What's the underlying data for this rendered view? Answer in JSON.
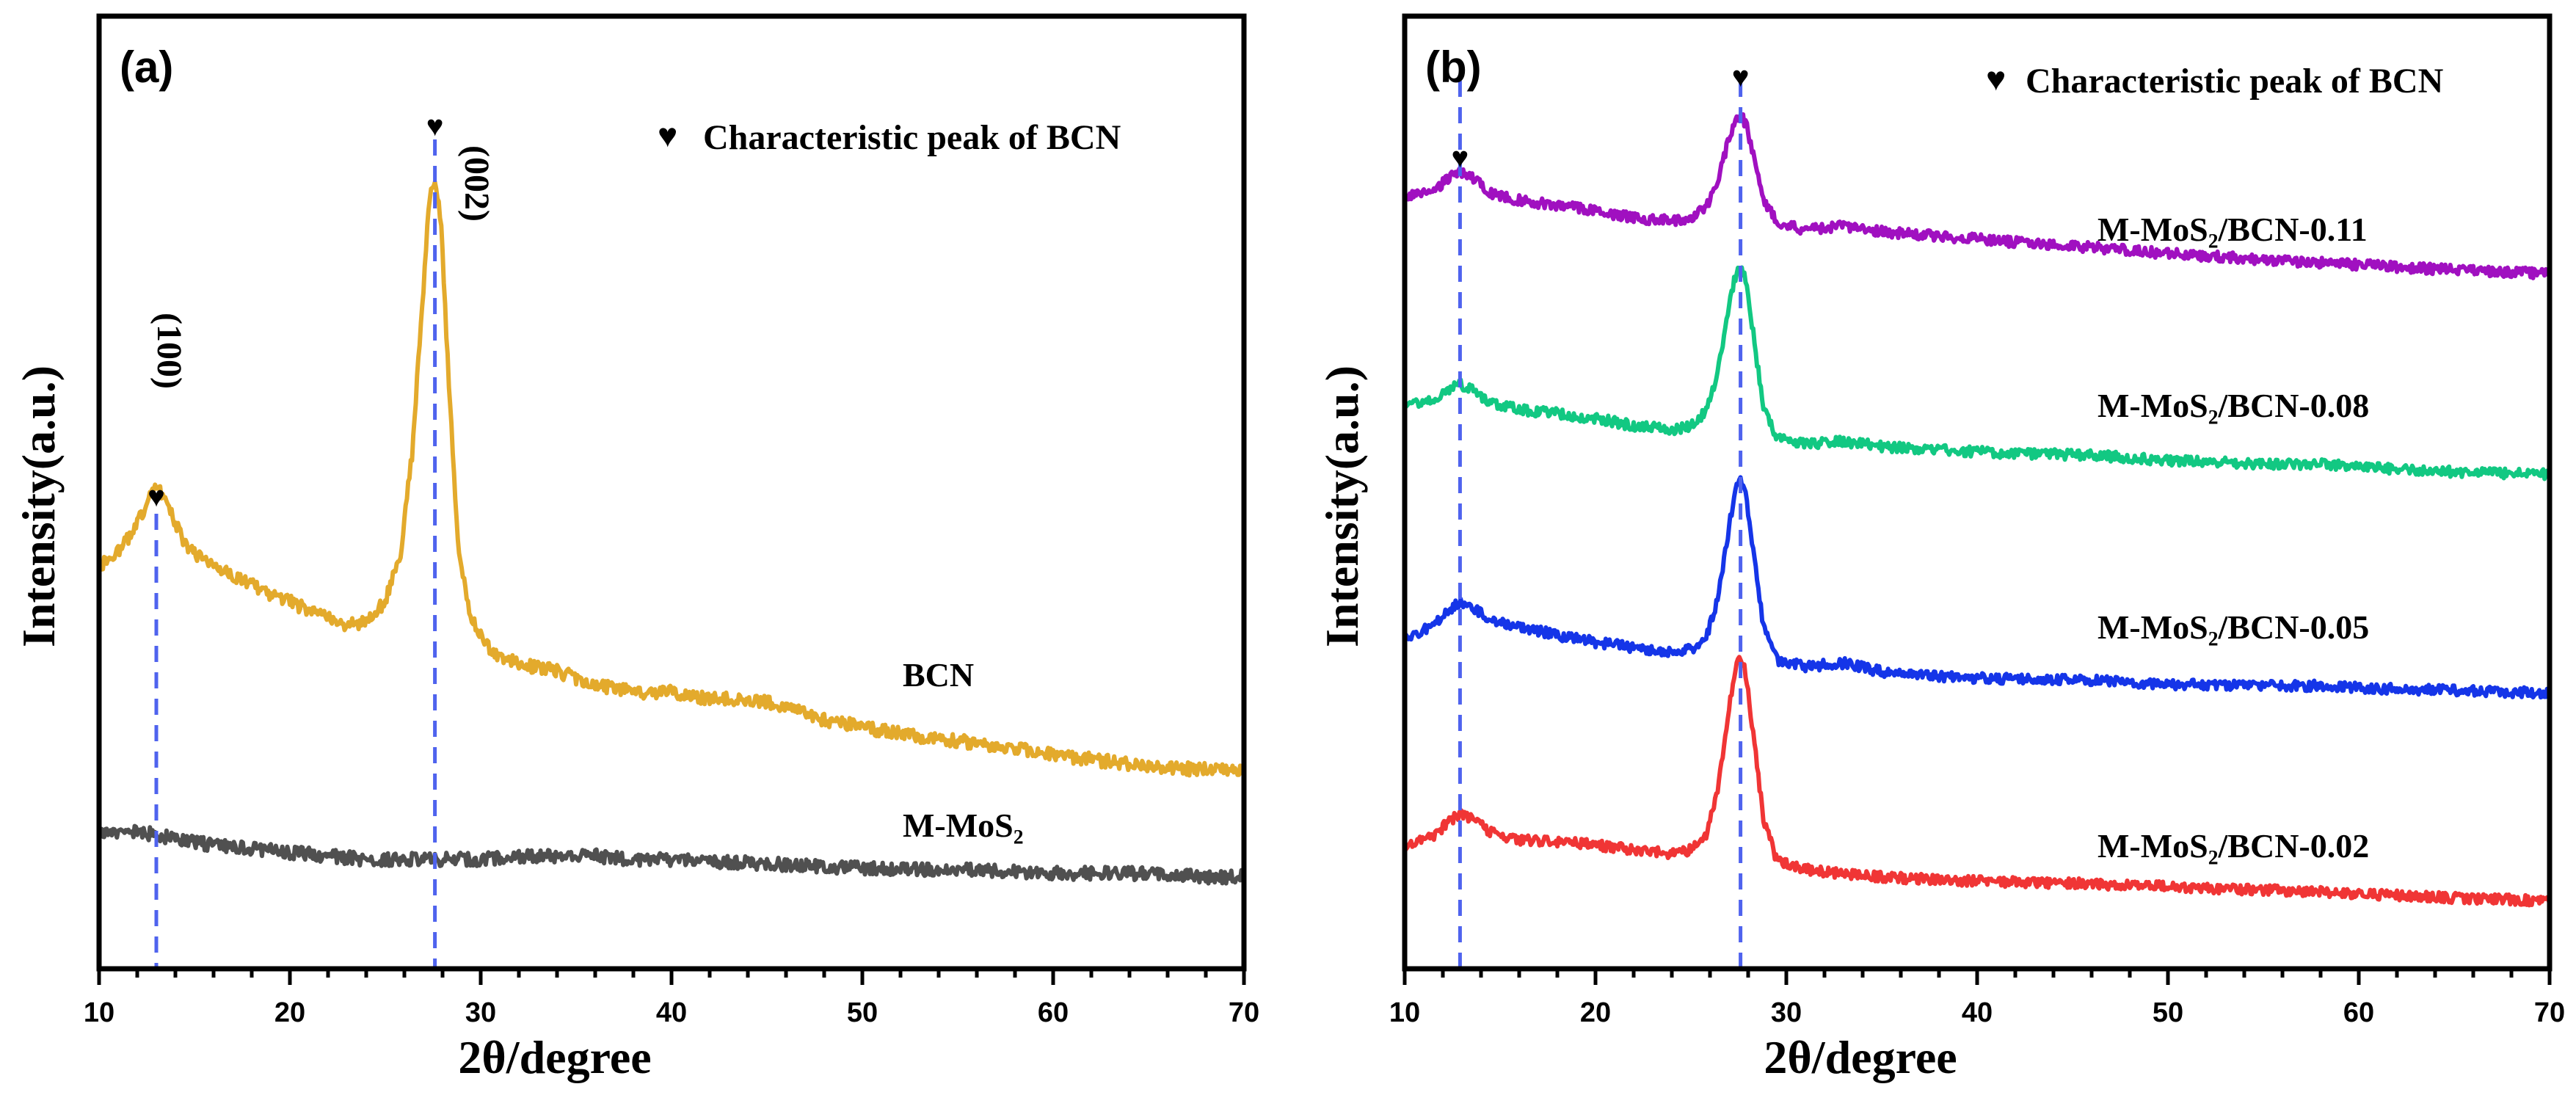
{
  "colors": {
    "marker": "#4f63ee",
    "bcn": "#e3aa2c",
    "mmos2": "#505050",
    "p011": "#a010c0",
    "p008": "#12c882",
    "p005": "#1535e8",
    "p002": "#f03535"
  },
  "chart_data": [
    {
      "type": "line",
      "panel": "(a)",
      "xlabel": "2θ/degree",
      "ylabel": "Intensity(a.u.)",
      "xlim": [
        10,
        70
      ],
      "x_ticks": [
        "10",
        "20",
        "30",
        "40",
        "50",
        "60",
        "70"
      ],
      "y_ticks_labeled": false,
      "grid": false,
      "legend": {
        "symbol": "♥",
        "text": "Characteristic peak of BCN",
        "position": "top-right"
      },
      "annotations": [
        {
          "text": "(100)",
          "x": 13.0
        },
        {
          "text": "(002)",
          "x": 27.6
        }
      ],
      "marker_lines_x": [
        13.0,
        27.6
      ],
      "series": [
        {
          "name": "BCN",
          "color": "#e3aa2c",
          "points": [
            [
              10,
              0.44
            ],
            [
              11,
              0.46
            ],
            [
              12,
              0.5
            ],
            [
              12.6,
              0.54
            ],
            [
              13,
              0.56
            ],
            [
              13.6,
              0.53
            ],
            [
              14.5,
              0.47
            ],
            [
              16,
              0.44
            ],
            [
              17.5,
              0.42
            ],
            [
              19,
              0.4
            ],
            [
              20,
              0.39
            ],
            [
              21.5,
              0.37
            ],
            [
              23,
              0.355
            ],
            [
              24,
              0.36
            ],
            [
              25,
              0.39
            ],
            [
              25.8,
              0.46
            ],
            [
              26.4,
              0.6
            ],
            [
              26.9,
              0.8
            ],
            [
              27.3,
              0.96
            ],
            [
              27.6,
              1.0
            ],
            [
              27.9,
              0.94
            ],
            [
              28.3,
              0.72
            ],
            [
              28.8,
              0.48
            ],
            [
              29.4,
              0.37
            ],
            [
              30.5,
              0.32
            ],
            [
              32,
              0.3
            ],
            [
              34,
              0.29
            ],
            [
              36,
              0.27
            ],
            [
              38,
              0.26
            ],
            [
              40,
              0.26
            ],
            [
              42,
              0.25
            ],
            [
              44,
              0.25
            ],
            [
              46,
              0.24
            ],
            [
              48,
              0.22
            ],
            [
              50,
              0.21
            ],
            [
              52,
              0.2
            ],
            [
              55,
              0.19
            ],
            [
              58,
              0.18
            ],
            [
              60,
              0.17
            ],
            [
              63,
              0.16
            ],
            [
              66,
              0.15
            ],
            [
              70,
              0.15
            ]
          ]
        },
        {
          "name": "M-MoS₂",
          "color": "#505050",
          "points": [
            [
              10,
              0.06
            ],
            [
              12,
              0.06
            ],
            [
              14,
              0.05
            ],
            [
              16,
              0.04
            ],
            [
              18,
              0.035
            ],
            [
              20,
              0.03
            ],
            [
              22,
              0.025
            ],
            [
              24,
              0.02
            ],
            [
              26,
              0.02
            ],
            [
              28,
              0.02
            ],
            [
              30,
              0.02
            ],
            [
              32,
              0.025
            ],
            [
              34,
              0.025
            ],
            [
              36,
              0.025
            ],
            [
              38,
              0.02
            ],
            [
              40,
              0.02
            ],
            [
              44,
              0.015
            ],
            [
              48,
              0.01
            ],
            [
              52,
              0.005
            ],
            [
              56,
              0.005
            ],
            [
              60,
              0.0
            ],
            [
              64,
              0.0
            ],
            [
              68,
              -0.005
            ],
            [
              70,
              -0.005
            ]
          ]
        }
      ]
    },
    {
      "type": "line",
      "panel": "(b)",
      "xlabel": "2θ/degree",
      "ylabel": "Intensity(a.u.)",
      "xlim": [
        10,
        70
      ],
      "x_ticks": [
        "10",
        "20",
        "30",
        "40",
        "50",
        "60",
        "70"
      ],
      "y_ticks_labeled": false,
      "grid": false,
      "legend": {
        "symbol": "♥",
        "text": "Characteristic peak of BCN",
        "position": "top-right"
      },
      "marker_lines_x": [
        12.9,
        27.6
      ],
      "series": [
        {
          "name": "M-MoS₂/BCN-0.11",
          "color": "#a010c0",
          "points": [
            [
              10,
              0.842
            ],
            [
              11.5,
              0.85
            ],
            [
              12.3,
              0.862
            ],
            [
              12.9,
              0.872
            ],
            [
              13.6,
              0.862
            ],
            [
              14.5,
              0.846
            ],
            [
              16,
              0.838
            ],
            [
              18,
              0.832
            ],
            [
              20,
              0.826
            ],
            [
              22,
              0.818
            ],
            [
              24,
              0.814
            ],
            [
              25,
              0.818
            ],
            [
              25.8,
              0.83
            ],
            [
              26.4,
              0.86
            ],
            [
              26.9,
              0.9
            ],
            [
              27.3,
              0.928
            ],
            [
              27.6,
              0.935
            ],
            [
              27.9,
              0.925
            ],
            [
              28.3,
              0.888
            ],
            [
              28.8,
              0.84
            ],
            [
              29.5,
              0.812
            ],
            [
              31,
              0.804
            ],
            [
              33,
              0.808
            ],
            [
              35,
              0.802
            ],
            [
              38,
              0.797
            ],
            [
              42,
              0.79
            ],
            [
              46,
              0.784
            ],
            [
              50,
              0.777
            ],
            [
              55,
              0.77
            ],
            [
              60,
              0.764
            ],
            [
              65,
              0.758
            ],
            [
              70,
              0.754
            ]
          ]
        },
        {
          "name": "M-MoS₂/BCN-0.08",
          "color": "#12c882",
          "points": [
            [
              10,
              0.604
            ],
            [
              11.5,
              0.61
            ],
            [
              12.3,
              0.62
            ],
            [
              12.9,
              0.628
            ],
            [
              13.6,
              0.62
            ],
            [
              14.5,
              0.606
            ],
            [
              16,
              0.598
            ],
            [
              18,
              0.594
            ],
            [
              20,
              0.588
            ],
            [
              22,
              0.58
            ],
            [
              24,
              0.575
            ],
            [
              25,
              0.58
            ],
            [
              25.8,
              0.596
            ],
            [
              26.4,
              0.64
            ],
            [
              26.9,
              0.705
            ],
            [
              27.3,
              0.75
            ],
            [
              27.6,
              0.762
            ],
            [
              27.9,
              0.745
            ],
            [
              28.3,
              0.68
            ],
            [
              28.8,
              0.6
            ],
            [
              29.5,
              0.566
            ],
            [
              31,
              0.558
            ],
            [
              33,
              0.562
            ],
            [
              35,
              0.556
            ],
            [
              38,
              0.552
            ],
            [
              42,
              0.548
            ],
            [
              46,
              0.546
            ],
            [
              50,
              0.54
            ],
            [
              55,
              0.536
            ],
            [
              58,
              0.536
            ],
            [
              62,
              0.53
            ],
            [
              66,
              0.526
            ],
            [
              70,
              0.524
            ]
          ]
        },
        {
          "name": "M-MoS₂/BCN-0.05",
          "color": "#1535e8",
          "points": [
            [
              10,
              0.338
            ],
            [
              11.5,
              0.35
            ],
            [
              12.3,
              0.368
            ],
            [
              12.9,
              0.378
            ],
            [
              13.6,
              0.37
            ],
            [
              14.5,
              0.358
            ],
            [
              16,
              0.35
            ],
            [
              18,
              0.34
            ],
            [
              20,
              0.332
            ],
            [
              22,
              0.326
            ],
            [
              24,
              0.32
            ],
            [
              25,
              0.324
            ],
            [
              25.8,
              0.338
            ],
            [
              26.4,
              0.38
            ],
            [
              26.9,
              0.45
            ],
            [
              27.3,
              0.505
            ],
            [
              27.6,
              0.52
            ],
            [
              27.9,
              0.5
            ],
            [
              28.3,
              0.43
            ],
            [
              28.8,
              0.35
            ],
            [
              29.5,
              0.312
            ],
            [
              31,
              0.304
            ],
            [
              33,
              0.308
            ],
            [
              35,
              0.298
            ],
            [
              38,
              0.292
            ],
            [
              42,
              0.29
            ],
            [
              46,
              0.288
            ],
            [
              50,
              0.284
            ],
            [
              55,
              0.282
            ],
            [
              58,
              0.282
            ],
            [
              62,
              0.278
            ],
            [
              66,
              0.276
            ],
            [
              70,
              0.274
            ]
          ]
        },
        {
          "name": "M-MoS₂/BCN-0.02",
          "color": "#f03535",
          "points": [
            [
              10,
              0.1
            ],
            [
              11.5,
              0.11
            ],
            [
              12.3,
              0.126
            ],
            [
              12.9,
              0.136
            ],
            [
              13.6,
              0.128
            ],
            [
              14.5,
              0.114
            ],
            [
              16,
              0.106
            ],
            [
              18,
              0.104
            ],
            [
              20,
              0.1
            ],
            [
              22,
              0.094
            ],
            [
              24,
              0.09
            ],
            [
              25,
              0.094
            ],
            [
              25.8,
              0.11
            ],
            [
              26.4,
              0.16
            ],
            [
              26.9,
              0.24
            ],
            [
              27.3,
              0.3
            ],
            [
              27.6,
              0.316
            ],
            [
              27.9,
              0.295
            ],
            [
              28.3,
              0.22
            ],
            [
              28.8,
              0.13
            ],
            [
              29.5,
              0.082
            ],
            [
              31,
              0.072
            ],
            [
              33,
              0.066
            ],
            [
              36,
              0.062
            ],
            [
              40,
              0.058
            ],
            [
              45,
              0.056
            ],
            [
              50,
              0.052
            ],
            [
              55,
              0.048
            ],
            [
              58,
              0.046
            ],
            [
              62,
              0.042
            ],
            [
              66,
              0.038
            ],
            [
              70,
              0.036
            ]
          ]
        }
      ]
    }
  ]
}
